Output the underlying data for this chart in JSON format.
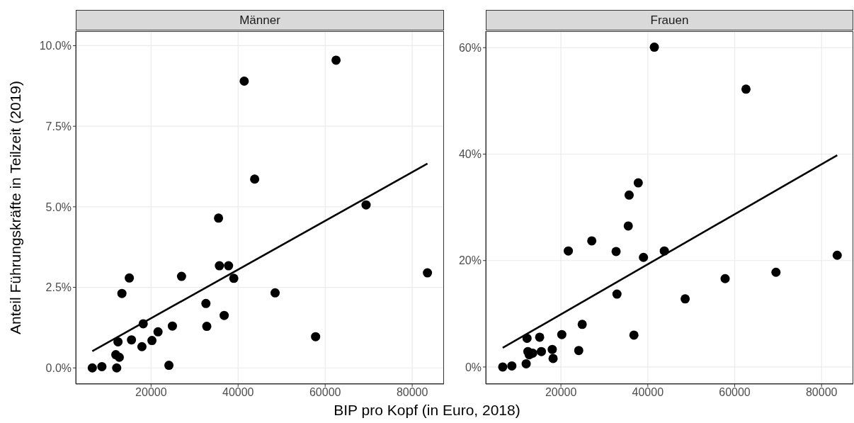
{
  "chart_data": [
    {
      "type": "scatter",
      "title": "Männer",
      "xlabel": "BIP pro Kopf (in Euro, 2018)",
      "ylabel": "Anteil Führungskräfte in Teilzeit (2019)",
      "xlim": [
        2700,
        87300
      ],
      "xticks": [
        20000,
        40000,
        60000,
        80000
      ],
      "ylim": [
        -0.5,
        10.45
      ],
      "yticks": [
        {
          "value": 0,
          "label": "0.0%"
        },
        {
          "value": 2.5,
          "label": "2.5%"
        },
        {
          "value": 5,
          "label": "5.0%"
        },
        {
          "value": 7.5,
          "label": "7.5%"
        },
        {
          "value": 10,
          "label": "10.0%"
        }
      ],
      "grid": true,
      "marker": "circle",
      "series": [
        {
          "color": "#000000",
          "x": [
            6500,
            8700,
            12100,
            11900,
            12700,
            12400,
            13300,
            15000,
            15500,
            17900,
            18200,
            20200,
            21600,
            24100,
            24900,
            27000,
            32600,
            32800,
            35500,
            35700,
            36800,
            37800,
            39000,
            41400,
            43800,
            48500,
            57800,
            62500,
            69400,
            83500
          ],
          "values": [
            0,
            0.04,
            0,
            0.41,
            0.33,
            0.81,
            2.31,
            2.79,
            0.87,
            0.66,
            1.37,
            0.85,
            1.12,
            0.08,
            1.3,
            2.84,
            2.0,
            1.29,
            4.65,
            3.17,
            1.63,
            3.17,
            2.78,
            8.9,
            5.86,
            2.33,
            0.97,
            9.55,
            5.06,
            2.95
          ]
        },
        {
          "type": "line",
          "marker": "none",
          "color": "#000000",
          "line_style": "solid",
          "x": [
            6500,
            83500
          ],
          "values": [
            0.52,
            6.34
          ]
        }
      ]
    },
    {
      "type": "scatter",
      "title": "Frauen",
      "xlim": [
        2700,
        87300
      ],
      "xticks": [
        20000,
        40000,
        60000,
        80000
      ],
      "ylim": [
        -3.2,
        63.1
      ],
      "yticks": [
        {
          "value": 0,
          "label": "0%"
        },
        {
          "value": 20,
          "label": "20%"
        },
        {
          "value": 40,
          "label": "40%"
        },
        {
          "value": 60,
          "label": "60%"
        }
      ],
      "grid": true,
      "marker": "circle",
      "series": [
        {
          "color": "#000000",
          "x": [
            6600,
            8700,
            12000,
            12200,
            12400,
            12700,
            13500,
            15100,
            15500,
            18000,
            18200,
            20200,
            21700,
            24100,
            24900,
            27100,
            32700,
            32900,
            35500,
            35700,
            36800,
            37800,
            39000,
            41500,
            43800,
            48600,
            57800,
            62600,
            69500,
            83600
          ],
          "values": [
            0,
            0.2,
            0.6,
            5.4,
            2.9,
            2.3,
            2.6,
            5.6,
            2.9,
            3.3,
            1.6,
            6.1,
            21.8,
            3.1,
            8.0,
            23.7,
            21.7,
            13.7,
            26.5,
            32.3,
            6.0,
            34.6,
            20.6,
            60.1,
            21.8,
            12.8,
            16.6,
            52.2,
            17.8,
            21.0
          ]
        },
        {
          "type": "line",
          "marker": "none",
          "color": "#000000",
          "line_style": "solid",
          "x": [
            6600,
            83600
          ],
          "values": [
            3.6,
            39.8
          ]
        }
      ]
    }
  ]
}
